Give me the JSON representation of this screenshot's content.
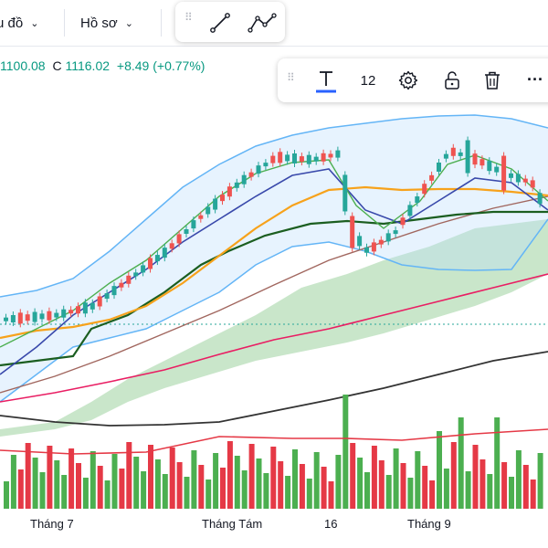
{
  "toolbar": {
    "chart_type_label": "u đồ",
    "profile_label": "Hồ sơ",
    "chevron": "⌄"
  },
  "draw_tools": [
    "trend-line-icon",
    "path-icon"
  ],
  "quote": {
    "close_label": "C",
    "low_part": "1100.08",
    "close_value": "1116.02",
    "change": "+8.49",
    "change_pct": "(+0.77%)"
  },
  "float_toolbar": {
    "font_size": "12",
    "more": "···",
    "underline_color": "#2962ff"
  },
  "x_axis": {
    "labels": [
      "Tháng 7",
      "Tháng Tám",
      "16",
      "Tháng 9"
    ]
  },
  "colors": {
    "up": "#26a69a",
    "down": "#ef5350",
    "volume_up": "#4caf50",
    "volume_down": "#e53946",
    "ma_orange": "#f7a21b",
    "ma_darkgreen": "#1b5e20",
    "ma_green": "#4caf50",
    "ma_navy": "#3949ab",
    "ma_brown": "#a1665e",
    "ma_pink": "#e91e63",
    "ma_black": "#333333",
    "cloud": "#a5d6a7",
    "band": "#64b5f6"
  },
  "chart_data": {
    "type": "candlestick",
    "indicators": [
      "bollinger-bands",
      "ichimoku-cloud",
      "moving-averages",
      "volume"
    ]
  }
}
